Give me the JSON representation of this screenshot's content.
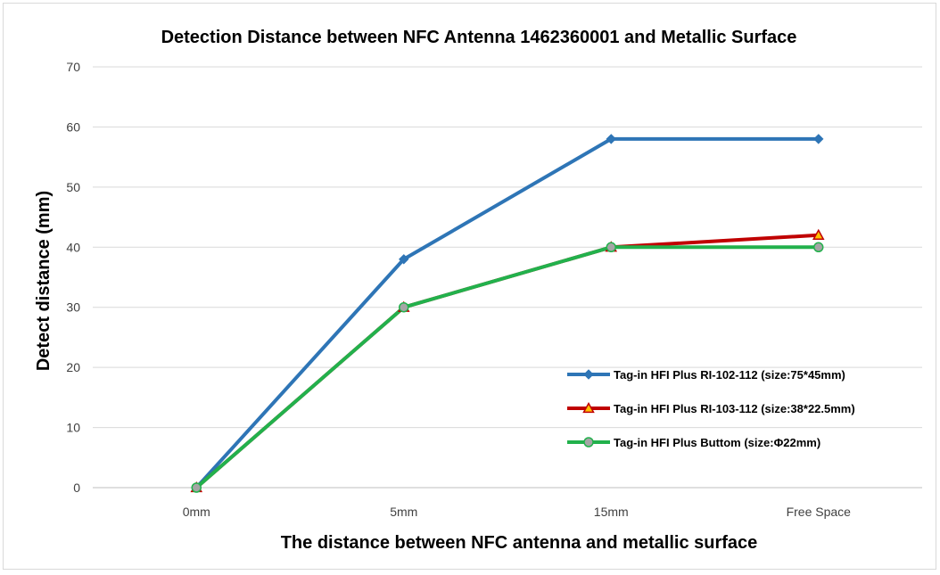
{
  "chart_data": {
    "type": "line",
    "title": "Detection Distance between NFC Antenna 1462360001 and Metallic Surface",
    "xlabel": "The distance between NFC antenna and metallic surface",
    "ylabel": "Detect distance (mm)",
    "categories": [
      "0mm",
      "5mm",
      "15mm",
      "Free Space"
    ],
    "ylim": [
      0,
      70
    ],
    "yticks": [
      0,
      10,
      20,
      30,
      40,
      50,
      60,
      70
    ],
    "grid": "horizontal",
    "legend_position": "right",
    "series": [
      {
        "name": "Tag-in HFI Plus RI-102-112 (size:75*45mm)",
        "values": [
          0,
          38,
          58,
          58
        ],
        "color": "#2e75b6",
        "marker": "diamond",
        "marker_fill": "#2e75b6"
      },
      {
        "name": "Tag-in HFI Plus RI-103-112 (size:38*22.5mm)",
        "values": [
          0,
          30,
          40,
          42
        ],
        "color": "#c00000",
        "marker": "triangle",
        "marker_fill": "#ffc000"
      },
      {
        "name": "Tag-in HFI Plus Buttom (size:Φ22mm)",
        "values": [
          0,
          30,
          40,
          40
        ],
        "color": "#22b14c",
        "marker": "circle",
        "marker_fill": "#a5a5a5"
      }
    ]
  }
}
